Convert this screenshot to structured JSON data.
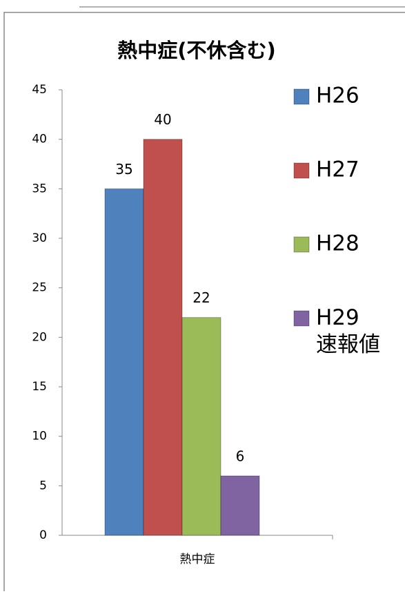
{
  "chart_data": {
    "type": "bar",
    "title": "熱中症(不休含む)",
    "categories": [
      "熱中症"
    ],
    "series": [
      {
        "name": "H26",
        "color": "#4f81bd",
        "values": [
          35
        ]
      },
      {
        "name": "H27",
        "color": "#c0504d",
        "values": [
          40
        ]
      },
      {
        "name": "H28",
        "color": "#9bbb59",
        "values": [
          22
        ]
      },
      {
        "name": "H29\n速報値",
        "color": "#8064a2",
        "values": [
          6
        ]
      }
    ],
    "ylim": [
      0,
      45
    ],
    "yticks": [
      0,
      5,
      10,
      15,
      20,
      25,
      30,
      35,
      40,
      45
    ],
    "grid": false,
    "legend": "right"
  }
}
